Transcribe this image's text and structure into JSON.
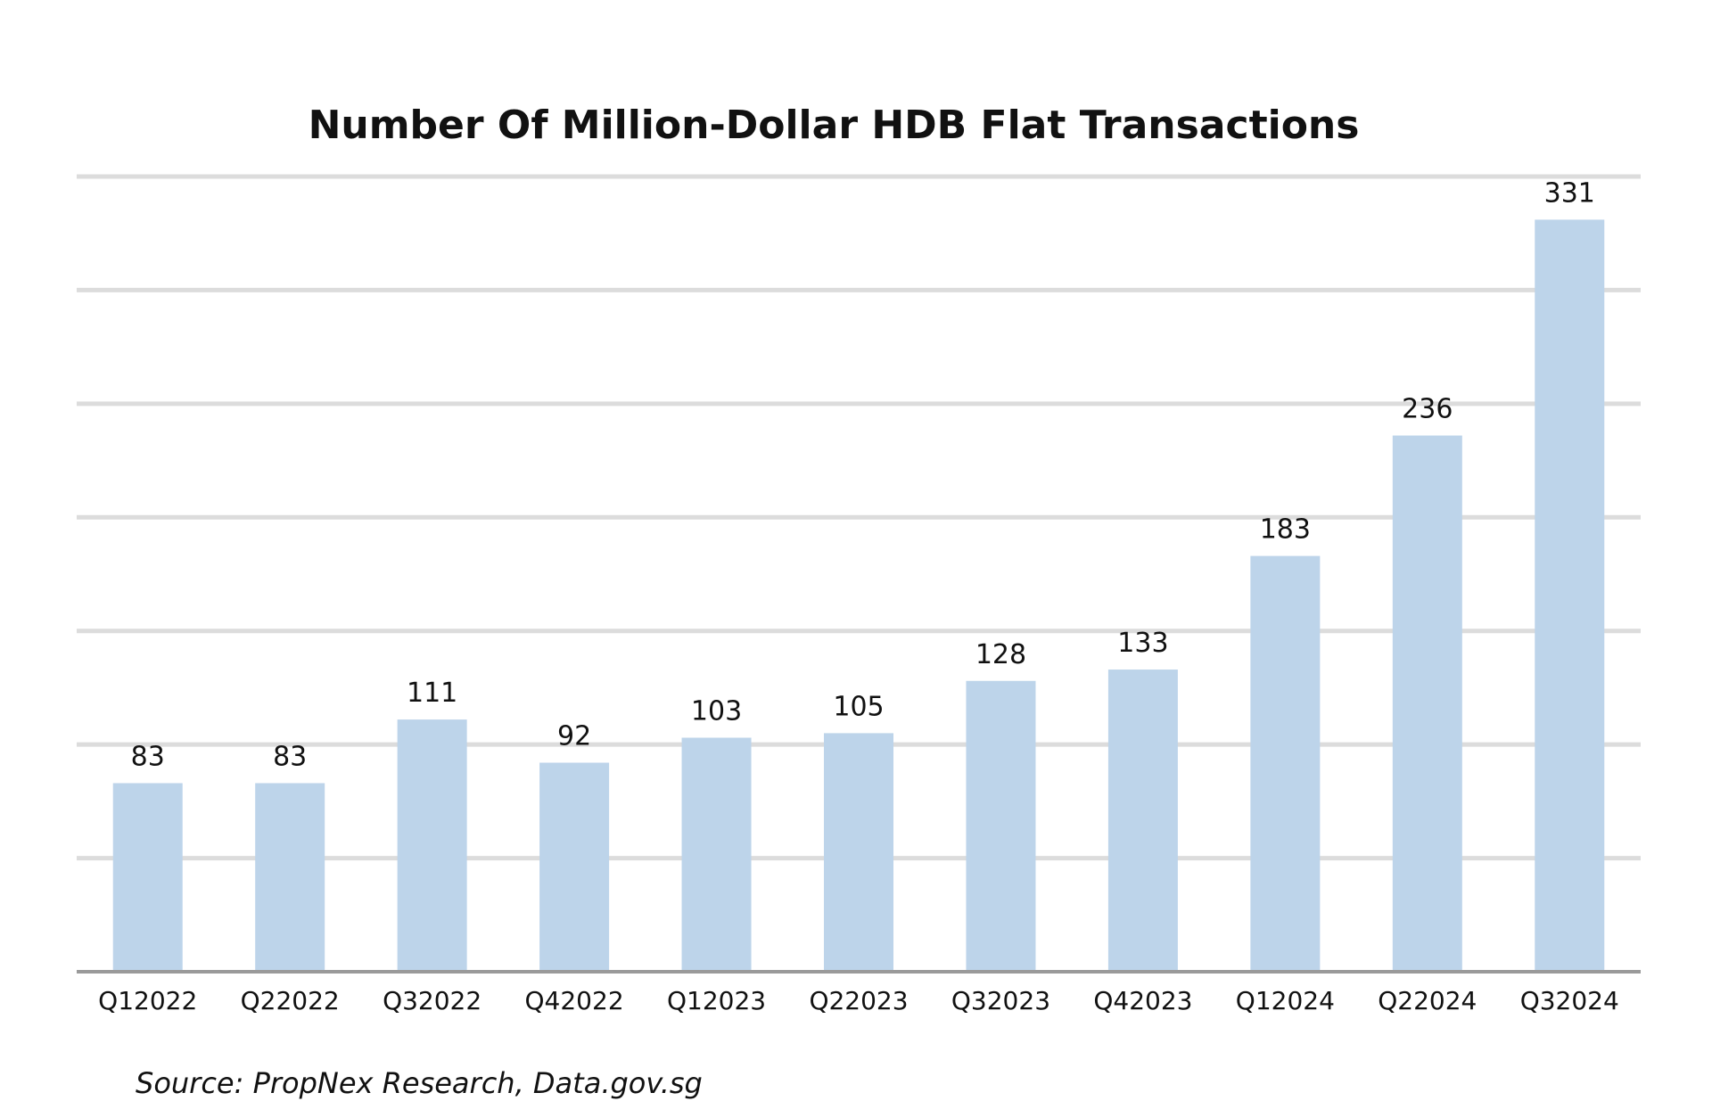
{
  "chart_data": {
    "type": "bar",
    "title": "Number Of Million-Dollar HDB Flat Transactions",
    "source": "Source: PropNex Research, Data.gov.sg",
    "categories": [
      "Q12022",
      "Q22022",
      "Q32022",
      "Q42022",
      "Q12023",
      "Q22023",
      "Q32023",
      "Q42023",
      "Q12024",
      "Q22024",
      "Q32024"
    ],
    "values": [
      83,
      83,
      111,
      92,
      103,
      105,
      128,
      133,
      183,
      236,
      331
    ],
    "ylim": [
      0,
      350
    ],
    "grid": true,
    "legend": "none",
    "colors": {
      "bar": "#bdd4ea",
      "grid": "#dcdcdc",
      "axis": "#9a9a9a",
      "text": "#111111"
    }
  }
}
